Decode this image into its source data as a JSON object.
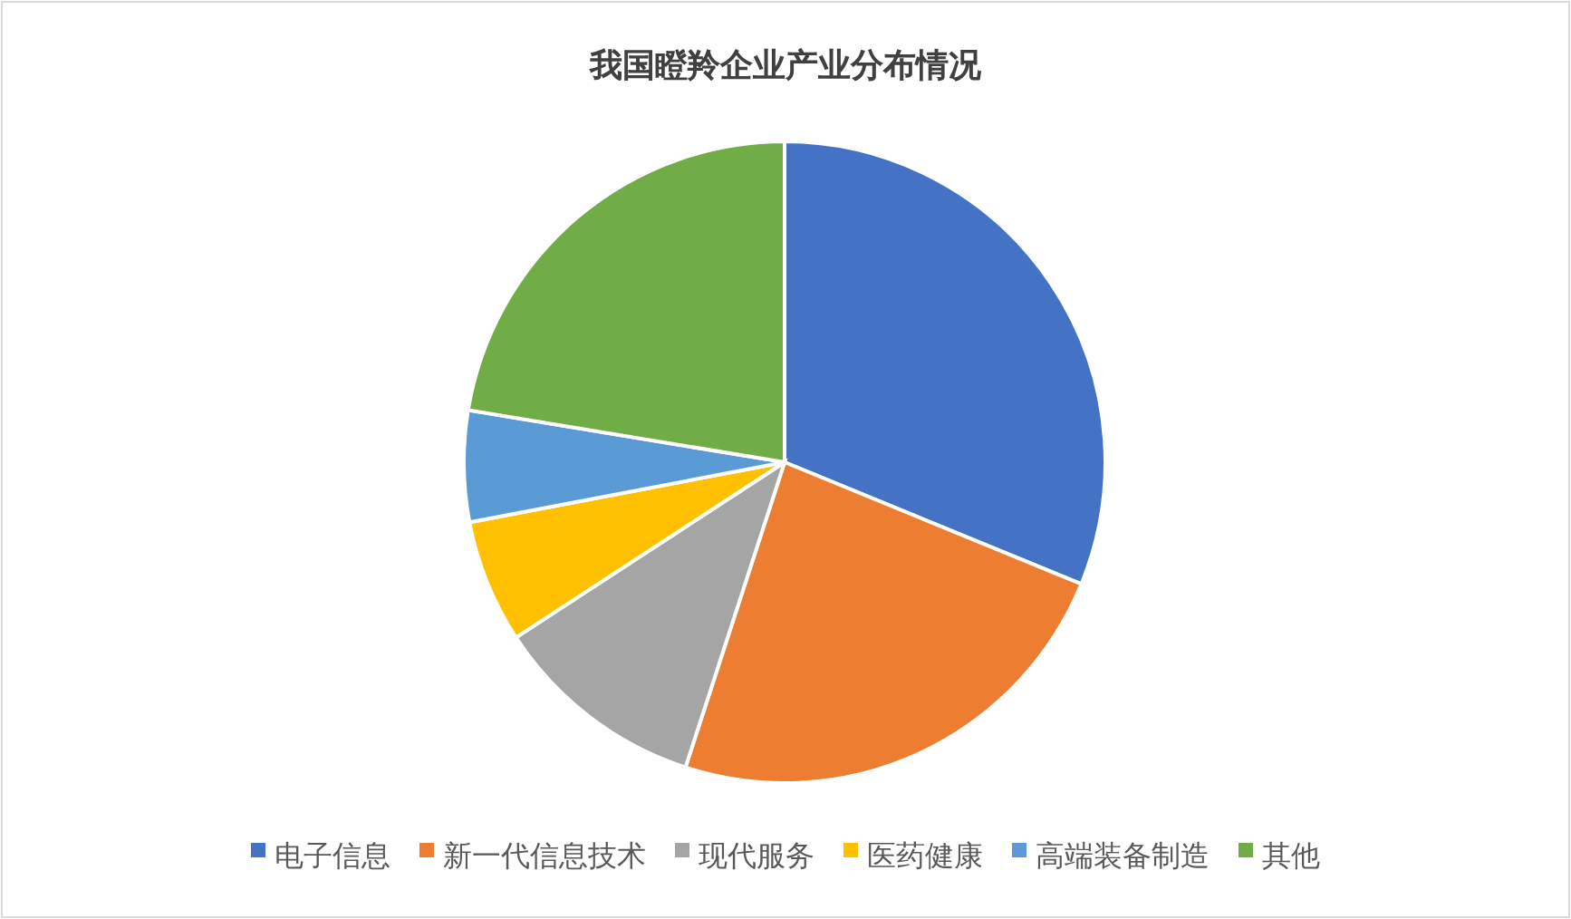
{
  "chart_data": {
    "type": "pie",
    "title": "我国瞪羚企业产业分布情况",
    "categories": [
      "电子信息",
      "新一代信息技术",
      "现代服务",
      "医药健康",
      "高端装备制造",
      "其他"
    ],
    "values": [
      31.2,
      23.8,
      10.8,
      6.2,
      5.6,
      22.4
    ],
    "colors": [
      "#4472c4",
      "#ed7d31",
      "#a5a5a5",
      "#ffc000",
      "#5b9bd5",
      "#70ad47"
    ],
    "legend": "bottom"
  }
}
